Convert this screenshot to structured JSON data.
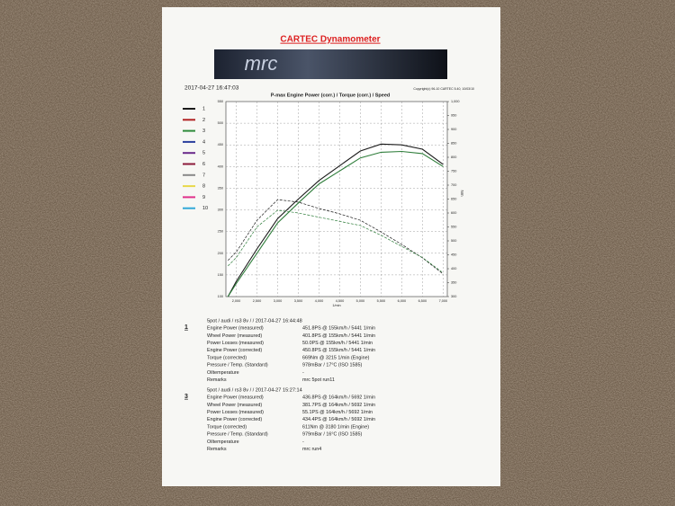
{
  "header": {
    "title": "CARTEC Dynamometer",
    "logo": "mrc",
    "timestamp": "2017-04-27 16:47:03",
    "copyright": "Copyright(c) 96-10 CARTEC 5.40, 10/03/10"
  },
  "chart": {
    "type": "line",
    "title": "P-max Engine Power (corr.) / Torque (corr.) / Speed",
    "x_label": "1/min",
    "y2_label": "Nm",
    "x": [
      1800,
      2000,
      2500,
      3000,
      3500,
      4000,
      4500,
      5000,
      5500,
      6000,
      6500,
      7000
    ],
    "xlim": [
      1750,
      7100
    ],
    "xticks": [
      {
        "value": 2000,
        "label": "2,000"
      },
      {
        "value": 2500,
        "label": "2,500"
      },
      {
        "value": 3000,
        "label": "3,000"
      },
      {
        "value": 3500,
        "label": "3,500"
      },
      {
        "value": 4000,
        "label": "4,000"
      },
      {
        "value": 4500,
        "label": "4,500"
      },
      {
        "value": 5000,
        "label": "5,000"
      },
      {
        "value": 5500,
        "label": "5,500"
      },
      {
        "value": 6000,
        "label": "6,000"
      },
      {
        "value": 6500,
        "label": "6,500"
      },
      {
        "value": 7000,
        "label": "7,000"
      }
    ],
    "ylim": [
      100,
      550
    ],
    "yticks": [
      100,
      150,
      200,
      250,
      300,
      350,
      400,
      450,
      500,
      550
    ],
    "y2lim": [
      300,
      1000
    ],
    "y2ticks": [
      300,
      350,
      400,
      450,
      500,
      550,
      600,
      650,
      700,
      750,
      800,
      850,
      900,
      950,
      {
        "value": 1000,
        "label": "1,000"
      }
    ],
    "grid": true,
    "legend": [
      {
        "label": "1",
        "color": "#1a1a1a"
      },
      {
        "label": "2",
        "color": "#b22222"
      },
      {
        "label": "3",
        "color": "#2e8b3a"
      },
      {
        "label": "4",
        "color": "#2a3f9e"
      },
      {
        "label": "5",
        "color": "#6a2a8a"
      },
      {
        "label": "6",
        "color": "#8b1a3a"
      },
      {
        "label": "7",
        "color": "#888888"
      },
      {
        "label": "8",
        "color": "#e8d84a"
      },
      {
        "label": "9",
        "color": "#e0308a"
      },
      {
        "label": "10",
        "color": "#30a8d8"
      }
    ],
    "series": [
      {
        "color": "#1a1a1a",
        "power": [
          100,
          135,
          210,
          280,
          325,
          368,
          402,
          436,
          452,
          450,
          440,
          405
        ],
        "torque": [
          430,
          460,
          574,
          648,
          639,
          616,
          597,
          574,
          532,
          487,
          439,
          381
        ]
      },
      {
        "color": "#2e7d3a",
        "power": [
          100,
          130,
          200,
          270,
          316,
          360,
          390,
          420,
          433,
          435,
          430,
          400
        ],
        "torque": [
          410,
          440,
          550,
          610,
          600,
          585,
          570,
          555,
          520,
          480,
          440,
          385
        ]
      }
    ]
  },
  "results": [
    {
      "number": "1",
      "header": "5pot / audi / rs3 8v / / 2017-04-27 16:44:48",
      "rows": [
        [
          "Engine Power (measured)",
          "451.8PS @ 155km/h / 5441 1/min"
        ],
        [
          "Wheel Power (measured)",
          "401.8PS @ 155km/h / 5441 1/min"
        ],
        [
          "Power Losses (measured)",
          "50.0PS @ 155km/h / 5441 1/min"
        ],
        [
          "Engine Power (corrected)",
          "450.8PS @ 155km/h / 5441 1/min"
        ],
        [
          "Torque (corrected)",
          "669Nm @ 3215 1/min (Engine)"
        ],
        [
          "Pressure / Temp. (Standard)",
          "978mBar / 17°C   (ISO 1585)"
        ],
        [
          "Oiltemperature",
          "-"
        ],
        [
          "Remarks",
          "mrc 5pot run11"
        ]
      ]
    },
    {
      "number": "3",
      "header": "5pot / audi / rs3 8v / / 2017-04-27 15:27:14",
      "rows": [
        [
          "Engine Power (measured)",
          "436.8PS @ 164km/h / 5692 1/min"
        ],
        [
          "Wheel Power (measured)",
          "381.7PS @ 164km/h / 5692 1/min"
        ],
        [
          "Power Losses (measured)",
          "55.1PS @ 164km/h / 5692 1/min"
        ],
        [
          "Engine Power (corrected)",
          "434.4PS @ 164km/h / 5692 1/min"
        ],
        [
          "Torque (corrected)",
          "611Nm @ 3180 1/min (Engine)"
        ],
        [
          "Pressure / Temp. (Standard)",
          "979mBar / 16°C   (ISO 1585)"
        ],
        [
          "Oiltemperature",
          "-"
        ],
        [
          "Remarks",
          "mrc run4"
        ]
      ]
    }
  ]
}
